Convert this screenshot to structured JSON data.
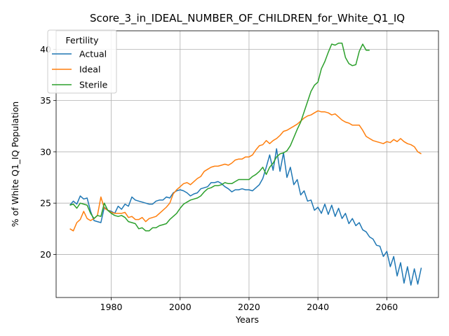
{
  "chart_data": {
    "type": "line",
    "title": "Score_3_in_IDEAL_NUMBER_OF_CHILDREN_for_White_Q1_IQ",
    "xlabel": "Years",
    "ylabel": "% of White Q1_IQ Population",
    "xlim": [
      1964,
      2075
    ],
    "ylim": [
      15.8,
      41.8
    ],
    "xticks": [
      1980,
      2000,
      2020,
      2040,
      2060
    ],
    "yticks": [
      20,
      25,
      30,
      35,
      40
    ],
    "grid": true,
    "legend": {
      "title": "Fertility",
      "placement": "top-left"
    },
    "series": [
      {
        "name": "Actual",
        "color": "#1f77b4",
        "x": [
          1968,
          1969,
          1970,
          1971,
          1972,
          1973,
          1974,
          1975,
          1976,
          1977,
          1978,
          1979,
          1980,
          1981,
          1982,
          1983,
          1984,
          1985,
          1986,
          1987,
          1988,
          1989,
          1990,
          1991,
          1992,
          1993,
          1994,
          1995,
          1996,
          1997,
          1998,
          1999,
          2000,
          2001,
          2002,
          2003,
          2004,
          2005,
          2006,
          2007,
          2008,
          2009,
          2010,
          2011,
          2012,
          2013,
          2014,
          2015,
          2016,
          2017,
          2018,
          2019,
          2020,
          2021,
          2022,
          2023,
          2024,
          2025,
          2026,
          2027,
          2028,
          2029,
          2030,
          2031,
          2032,
          2033,
          2034,
          2035,
          2036,
          2037,
          2038,
          2039,
          2040,
          2041,
          2042,
          2043,
          2044,
          2045,
          2046,
          2047,
          2048,
          2049,
          2050,
          2051,
          2052,
          2053,
          2054,
          2055,
          2056,
          2057,
          2058,
          2059,
          2060,
          2061,
          2062,
          2063,
          2064,
          2065,
          2066,
          2067,
          2068,
          2069,
          2070
        ],
        "values": [
          24.8,
          25.2,
          24.9,
          25.7,
          25.4,
          25.5,
          24.2,
          23.3,
          23.2,
          23.1,
          24.6,
          24.3,
          24.2,
          24.0,
          24.7,
          24.4,
          24.9,
          24.7,
          25.6,
          25.3,
          25.2,
          25.1,
          25.0,
          24.9,
          24.9,
          25.2,
          25.3,
          25.3,
          25.6,
          25.5,
          26.0,
          26.2,
          26.3,
          26.2,
          26.0,
          25.7,
          25.9,
          26.0,
          26.4,
          26.5,
          26.6,
          27.0,
          27.0,
          27.1,
          26.9,
          26.6,
          26.4,
          26.1,
          26.3,
          26.3,
          26.4,
          26.3,
          26.3,
          26.2,
          26.5,
          26.8,
          27.4,
          28.5,
          29.7,
          28.2,
          30.3,
          28.1,
          29.9,
          27.5,
          28.5,
          26.8,
          27.3,
          25.8,
          26.2,
          25.2,
          25.3,
          24.3,
          24.6,
          24.0,
          24.9,
          23.9,
          24.8,
          23.7,
          24.5,
          23.5,
          24.0,
          23.0,
          23.5,
          22.8,
          23.1,
          22.4,
          22.2,
          21.7,
          21.5,
          20.9,
          20.8,
          19.8,
          20.3,
          18.8,
          19.8,
          17.9,
          19.2,
          17.2,
          18.8,
          17.0,
          18.6,
          17.1,
          18.7
        ]
      },
      {
        "name": "Ideal",
        "color": "#ff7f0e",
        "x": [
          1968,
          1969,
          1970,
          1971,
          1972,
          1973,
          1974,
          1975,
          1976,
          1977,
          1978,
          1979,
          1980,
          1981,
          1982,
          1983,
          1984,
          1985,
          1986,
          1987,
          1988,
          1989,
          1990,
          1991,
          1992,
          1993,
          1994,
          1995,
          1996,
          1997,
          1998,
          1999,
          2000,
          2001,
          2002,
          2003,
          2004,
          2005,
          2006,
          2007,
          2008,
          2009,
          2010,
          2011,
          2012,
          2013,
          2014,
          2015,
          2016,
          2017,
          2018,
          2019,
          2020,
          2021,
          2022,
          2023,
          2024,
          2025,
          2026,
          2027,
          2028,
          2029,
          2030,
          2031,
          2032,
          2033,
          2034,
          2035,
          2036,
          2037,
          2038,
          2039,
          2040,
          2041,
          2042,
          2043,
          2044,
          2045,
          2046,
          2047,
          2048,
          2049,
          2050,
          2051,
          2052,
          2053,
          2054,
          2055,
          2056,
          2057,
          2058,
          2059,
          2060,
          2061,
          2062,
          2063,
          2064,
          2065,
          2066,
          2067,
          2068,
          2069,
          2070
        ],
        "values": [
          22.5,
          22.3,
          23.1,
          23.4,
          24.2,
          23.5,
          23.3,
          23.5,
          23.8,
          25.6,
          24.5,
          24.3,
          24.1,
          24.0,
          24.0,
          24.0,
          24.1,
          23.6,
          23.7,
          23.4,
          23.4,
          23.6,
          23.2,
          23.5,
          23.6,
          23.7,
          24.0,
          24.3,
          24.6,
          25.0,
          25.9,
          26.3,
          26.6,
          26.9,
          27.0,
          26.8,
          27.1,
          27.4,
          27.6,
          28.1,
          28.3,
          28.5,
          28.6,
          28.6,
          28.7,
          28.8,
          28.7,
          28.9,
          29.2,
          29.3,
          29.3,
          29.5,
          29.5,
          29.7,
          30.2,
          30.6,
          30.7,
          31.1,
          30.8,
          31.1,
          31.3,
          31.6,
          32.0,
          32.1,
          32.3,
          32.5,
          32.7,
          33.0,
          33.3,
          33.5,
          33.6,
          33.8,
          34.0,
          33.9,
          33.9,
          33.8,
          33.6,
          33.7,
          33.4,
          33.1,
          32.9,
          32.8,
          32.6,
          32.6,
          32.6,
          32.1,
          31.5,
          31.3,
          31.1,
          31.0,
          30.9,
          30.8,
          31.0,
          30.9,
          31.2,
          31.0,
          31.3,
          31.0,
          30.8,
          30.7,
          30.5,
          30.0,
          29.8
        ]
      },
      {
        "name": "Sterile",
        "color": "#2ca02c",
        "x": [
          1968,
          1969,
          1970,
          1971,
          1972,
          1973,
          1974,
          1975,
          1976,
          1977,
          1978,
          1979,
          1980,
          1981,
          1982,
          1983,
          1984,
          1985,
          1986,
          1987,
          1988,
          1989,
          1990,
          1991,
          1992,
          1993,
          1994,
          1995,
          1996,
          1997,
          1998,
          1999,
          2000,
          2001,
          2002,
          2003,
          2004,
          2005,
          2006,
          2007,
          2008,
          2009,
          2010,
          2011,
          2012,
          2013,
          2014,
          2015,
          2016,
          2017,
          2018,
          2019,
          2020,
          2021,
          2022,
          2023,
          2024,
          2025,
          2026,
          2027,
          2028,
          2029,
          2030,
          2031,
          2032,
          2033,
          2034,
          2035,
          2036,
          2037,
          2038,
          2039,
          2040,
          2041,
          2042,
          2043,
          2044,
          2045,
          2046,
          2047,
          2048,
          2049,
          2050,
          2051,
          2052,
          2053,
          2054,
          2055
        ],
        "values": [
          24.8,
          24.9,
          24.5,
          25.0,
          24.9,
          24.8,
          24.0,
          23.5,
          23.8,
          23.7,
          25.0,
          24.3,
          24.0,
          23.8,
          23.7,
          23.8,
          23.6,
          23.2,
          23.1,
          23.0,
          22.5,
          22.6,
          22.3,
          22.3,
          22.6,
          22.6,
          22.8,
          22.9,
          23.0,
          23.4,
          23.7,
          24.0,
          24.5,
          24.9,
          25.1,
          25.3,
          25.4,
          25.5,
          25.7,
          26.1,
          26.4,
          26.5,
          26.7,
          26.7,
          26.8,
          27.0,
          26.9,
          26.9,
          27.1,
          27.3,
          27.3,
          27.3,
          27.3,
          27.6,
          27.8,
          28.1,
          28.5,
          27.8,
          28.5,
          28.9,
          29.5,
          29.8,
          29.9,
          30.1,
          30.6,
          31.4,
          32.2,
          32.9,
          33.9,
          34.9,
          35.9,
          36.5,
          36.8,
          38.1,
          38.8,
          39.7,
          40.5,
          40.4,
          40.6,
          40.6,
          39.2,
          38.6,
          38.4,
          38.5,
          39.8,
          40.5,
          39.9,
          39.9
        ]
      }
    ]
  }
}
